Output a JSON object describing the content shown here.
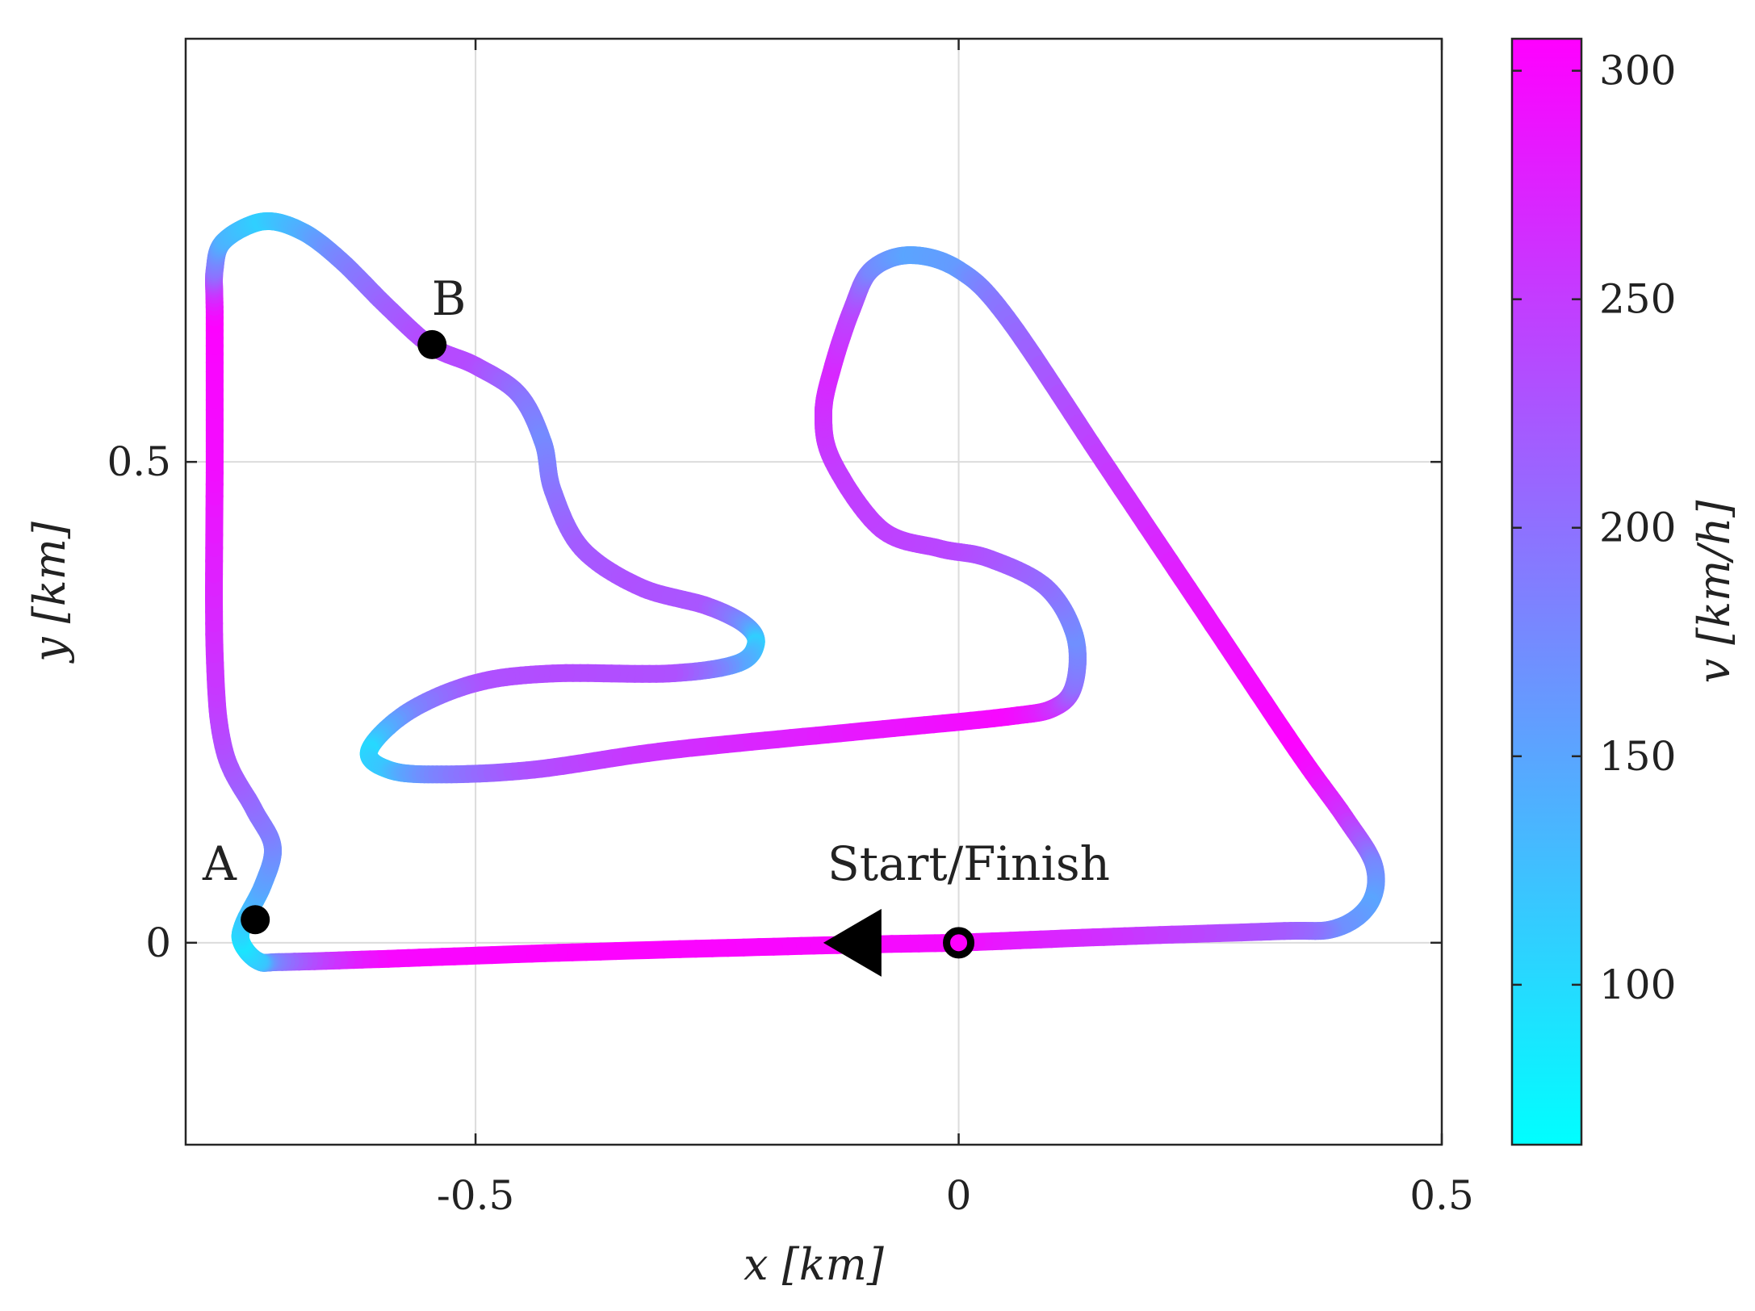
{
  "chart_data": {
    "type": "line",
    "xlabel": "x [km]",
    "ylabel": "y [km]",
    "xlim": [
      -0.8,
      0.5
    ],
    "ylim": [
      -0.21,
      0.94
    ],
    "x_ticks": [
      -0.5,
      0,
      0.5
    ],
    "x_tick_labels": [
      "-0.5",
      "0",
      "0.5"
    ],
    "y_ticks": [
      0,
      0.5
    ],
    "y_tick_labels": [
      "0",
      "0.5"
    ],
    "grid": true,
    "colorbar": {
      "label": "v [km/h]",
      "range": [
        65,
        307
      ],
      "ticks": [
        100,
        150,
        200,
        250,
        300
      ],
      "tick_labels": [
        "100",
        "150",
        "200",
        "250",
        "300"
      ],
      "color_low": "#00ffff",
      "color_high": "#ff00ff"
    },
    "track": [
      {
        "x": 0.0,
        "y": 0.0,
        "v": 295
      },
      {
        "x": -0.15,
        "y": -0.003,
        "v": 300
      },
      {
        "x": -0.4,
        "y": -0.01,
        "v": 305
      },
      {
        "x": -0.6,
        "y": -0.017,
        "v": 300
      },
      {
        "x": -0.7,
        "y": -0.02,
        "v": 200
      },
      {
        "x": -0.725,
        "y": -0.019,
        "v": 120
      },
      {
        "x": -0.742,
        "y": 0.0,
        "v": 90
      },
      {
        "x": -0.74,
        "y": 0.02,
        "v": 110
      },
      {
        "x": -0.72,
        "y": 0.06,
        "v": 150
      },
      {
        "x": -0.71,
        "y": 0.1,
        "v": 175
      },
      {
        "x": -0.73,
        "y": 0.14,
        "v": 200
      },
      {
        "x": -0.76,
        "y": 0.2,
        "v": 230
      },
      {
        "x": -0.77,
        "y": 0.3,
        "v": 260
      },
      {
        "x": -0.77,
        "y": 0.5,
        "v": 295
      },
      {
        "x": -0.77,
        "y": 0.65,
        "v": 305
      },
      {
        "x": -0.77,
        "y": 0.7,
        "v": 200
      },
      {
        "x": -0.76,
        "y": 0.73,
        "v": 140
      },
      {
        "x": -0.72,
        "y": 0.75,
        "v": 110
      },
      {
        "x": -0.68,
        "y": 0.74,
        "v": 140
      },
      {
        "x": -0.64,
        "y": 0.71,
        "v": 180
      },
      {
        "x": -0.59,
        "y": 0.66,
        "v": 215
      },
      {
        "x": -0.545,
        "y": 0.62,
        "v": 240
      },
      {
        "x": -0.5,
        "y": 0.6,
        "v": 235
      },
      {
        "x": -0.455,
        "y": 0.57,
        "v": 200
      },
      {
        "x": -0.43,
        "y": 0.52,
        "v": 175
      },
      {
        "x": -0.42,
        "y": 0.47,
        "v": 195
      },
      {
        "x": -0.39,
        "y": 0.41,
        "v": 220
      },
      {
        "x": -0.33,
        "y": 0.37,
        "v": 230
      },
      {
        "x": -0.26,
        "y": 0.35,
        "v": 225
      },
      {
        "x": -0.22,
        "y": 0.33,
        "v": 170
      },
      {
        "x": -0.21,
        "y": 0.31,
        "v": 110
      },
      {
        "x": -0.23,
        "y": 0.29,
        "v": 150
      },
      {
        "x": -0.3,
        "y": 0.28,
        "v": 230
      },
      {
        "x": -0.42,
        "y": 0.28,
        "v": 235
      },
      {
        "x": -0.5,
        "y": 0.27,
        "v": 230
      },
      {
        "x": -0.57,
        "y": 0.24,
        "v": 180
      },
      {
        "x": -0.61,
        "y": 0.2,
        "v": 100
      },
      {
        "x": -0.59,
        "y": 0.18,
        "v": 120
      },
      {
        "x": -0.54,
        "y": 0.175,
        "v": 180
      },
      {
        "x": -0.44,
        "y": 0.18,
        "v": 230
      },
      {
        "x": -0.3,
        "y": 0.2,
        "v": 260
      },
      {
        "x": -0.1,
        "y": 0.22,
        "v": 285
      },
      {
        "x": 0.05,
        "y": 0.235,
        "v": 300
      },
      {
        "x": 0.1,
        "y": 0.245,
        "v": 260
      },
      {
        "x": 0.12,
        "y": 0.27,
        "v": 200
      },
      {
        "x": 0.12,
        "y": 0.32,
        "v": 170
      },
      {
        "x": 0.09,
        "y": 0.37,
        "v": 200
      },
      {
        "x": 0.03,
        "y": 0.4,
        "v": 225
      },
      {
        "x": -0.02,
        "y": 0.41,
        "v": 240
      },
      {
        "x": -0.08,
        "y": 0.43,
        "v": 245
      },
      {
        "x": -0.13,
        "y": 0.5,
        "v": 250
      },
      {
        "x": -0.14,
        "y": 0.55,
        "v": 260
      },
      {
        "x": -0.13,
        "y": 0.6,
        "v": 270
      },
      {
        "x": -0.11,
        "y": 0.66,
        "v": 240
      },
      {
        "x": -0.09,
        "y": 0.7,
        "v": 180
      },
      {
        "x": -0.05,
        "y": 0.715,
        "v": 150
      },
      {
        "x": 0.0,
        "y": 0.7,
        "v": 160
      },
      {
        "x": 0.05,
        "y": 0.65,
        "v": 200
      },
      {
        "x": 0.15,
        "y": 0.5,
        "v": 250
      },
      {
        "x": 0.25,
        "y": 0.35,
        "v": 285
      },
      {
        "x": 0.35,
        "y": 0.2,
        "v": 305
      },
      {
        "x": 0.4,
        "y": 0.13,
        "v": 260
      },
      {
        "x": 0.43,
        "y": 0.08,
        "v": 180
      },
      {
        "x": 0.425,
        "y": 0.04,
        "v": 150
      },
      {
        "x": 0.39,
        "y": 0.015,
        "v": 170
      },
      {
        "x": 0.33,
        "y": 0.012,
        "v": 220
      },
      {
        "x": 0.15,
        "y": 0.006,
        "v": 260
      },
      {
        "x": 0.0,
        "y": 0.0,
        "v": 295
      }
    ],
    "markers": [
      {
        "label": "A",
        "x": -0.728,
        "y": 0.024
      },
      {
        "label": "B",
        "x": -0.545,
        "y": 0.622
      }
    ],
    "start_finish": {
      "label": "Start/Finish",
      "x": 0.0,
      "y": 0.0
    },
    "direction_arrow": {
      "x": -0.11,
      "y": 0.0,
      "direction": "left"
    }
  }
}
